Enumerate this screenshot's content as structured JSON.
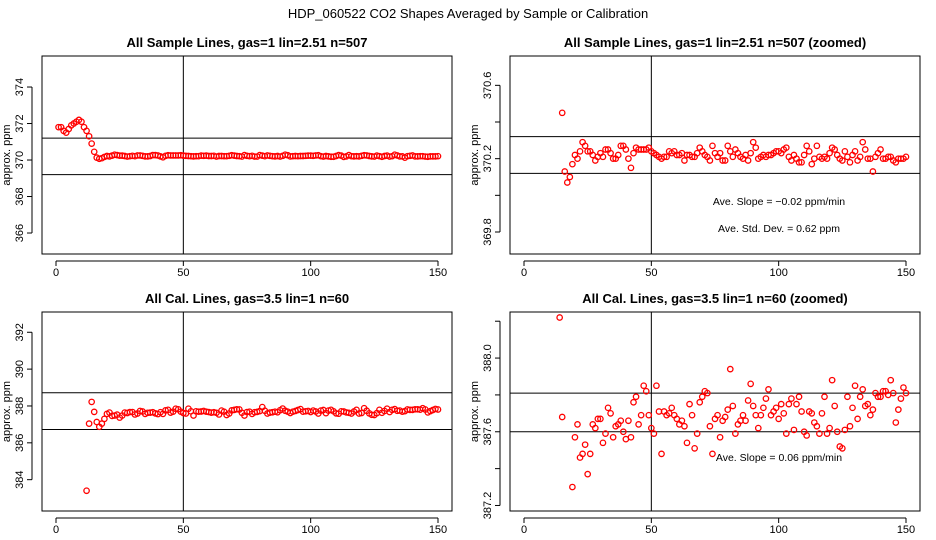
{
  "figure": {
    "title": "HDP_060522  CO2 Shapes Averaged by Sample or Calibration"
  },
  "colors": {
    "points": "#ff0000",
    "lines": "#000000"
  },
  "chart_data": [
    {
      "type": "scatter",
      "title": "All Sample Lines, gas=1 lin=2.51 n=507",
      "ylabel": "approx. ppm",
      "xlabel": "",
      "xlim": [
        -5.5,
        155.5
      ],
      "ylim": [
        364.85,
        375.7
      ],
      "xticks": [
        0,
        50,
        100,
        150
      ],
      "yticks": [
        366,
        368,
        370,
        372,
        374
      ],
      "vline": 50,
      "hlines": [
        371.2,
        369.2
      ],
      "annotations": [],
      "series_ref": "sample"
    },
    {
      "type": "scatter",
      "title": "All Sample Lines, gas=1 lin=2.51 n=507 (zoomed)",
      "ylabel": "approx. ppm",
      "xlabel": "",
      "xlim": [
        -5.5,
        155.5
      ],
      "ylim": [
        369.68,
        370.76
      ],
      "xticks": [
        0,
        50,
        100,
        150
      ],
      "yticks": [
        369.8,
        370.0,
        370.2,
        370.4,
        370.6
      ],
      "ytick_labels": [
        "369.8",
        "",
        "370.2",
        "",
        "370.6"
      ],
      "vline": 50,
      "hlines": [
        370.32,
        370.12
      ],
      "annotations": [
        "Ave. Slope =  −0.02  ppm/min",
        "Ave. Std. Dev. =  0.62  ppm"
      ],
      "series_ref": "sample"
    },
    {
      "type": "scatter",
      "title": "All Cal. Lines, gas=3.5 lin=1 n=60",
      "ylabel": "approx. ppm",
      "xlabel": "",
      "xlim": [
        -5.5,
        155.5
      ],
      "ylim": [
        382.3,
        393.1
      ],
      "xticks": [
        0,
        50,
        100,
        150
      ],
      "yticks": [
        384,
        386,
        388,
        390,
        392
      ],
      "vline": 50,
      "hlines": [
        388.72,
        386.72
      ],
      "annotations": [],
      "series_ref": "cal"
    },
    {
      "type": "scatter",
      "title": "All Cal. Lines, gas=3.5 lin=1 n=60 (zoomed)",
      "ylabel": "approx. ppm",
      "xlabel": "",
      "xlim": [
        -5.5,
        155.5
      ],
      "ylim": [
        387.17,
        388.25
      ],
      "xticks": [
        0,
        50,
        100,
        150
      ],
      "yticks": [
        387.2,
        387.4,
        387.6,
        387.8,
        388.0,
        388.2
      ],
      "ytick_labels": [
        "387.2",
        "",
        "387.6",
        "",
        "388.0",
        ""
      ],
      "vline": 50,
      "hlines": [
        387.81,
        387.6
      ],
      "annotations": [
        "Ave. Slope =  0.06  ppm/min"
      ],
      "series_ref": "cal"
    }
  ],
  "series": {
    "sample": {
      "x_start": 1,
      "values": [
        371.8,
        371.8,
        371.6,
        371.5,
        371.7,
        371.9,
        372.0,
        372.1,
        372.2,
        372.1,
        371.8,
        371.6,
        371.3,
        370.9,
        370.45,
        370.13,
        370.07,
        370.1,
        370.17,
        370.22,
        370.2,
        370.24,
        370.29,
        370.27,
        370.24,
        370.24,
        370.22,
        370.19,
        370.21,
        370.23,
        370.21,
        370.25,
        370.25,
        370.23,
        370.2,
        370.2,
        370.22,
        370.27,
        370.27,
        370.25,
        370.2,
        370.15,
        370.23,
        370.26,
        370.25,
        370.25,
        370.25,
        370.25,
        370.26,
        370.24,
        370.23,
        370.22,
        370.21,
        370.2,
        370.21,
        370.21,
        370.24,
        370.23,
        370.24,
        370.22,
        370.22,
        370.23,
        370.19,
        370.22,
        370.22,
        370.21,
        370.21,
        370.23,
        370.26,
        370.24,
        370.22,
        370.21,
        370.19,
        370.27,
        370.23,
        370.21,
        370.23,
        370.19,
        370.19,
        370.27,
        370.24,
        370.21,
        370.25,
        370.23,
        370.21,
        370.2,
        370.22,
        370.19,
        370.23,
        370.29,
        370.26,
        370.2,
        370.21,
        370.22,
        370.21,
        370.22,
        370.22,
        370.23,
        370.24,
        370.24,
        370.23,
        370.25,
        370.26,
        370.21,
        370.19,
        370.22,
        370.2,
        370.18,
        370.18,
        370.22,
        370.27,
        370.24,
        370.17,
        370.2,
        370.27,
        370.21,
        370.2,
        370.21,
        370.2,
        370.23,
        370.26,
        370.25,
        370.22,
        370.2,
        370.19,
        370.24,
        370.21,
        370.18,
        370.22,
        370.24,
        370.19,
        370.21,
        370.29,
        370.25,
        370.2,
        370.2,
        370.13,
        370.21,
        370.23,
        370.25,
        370.2,
        370.2,
        370.21,
        370.21,
        370.19,
        370.18,
        370.2,
        370.2,
        370.2,
        370.21
      ]
    },
    "cal": {
      "x_start": 12,
      "values": [
        383.4,
        387.04,
        388.22,
        387.68,
        387.13,
        386.87,
        387.04,
        387.3,
        387.57,
        387.64,
        387.46,
        387.48,
        387.53,
        387.37,
        387.48,
        387.64,
        387.62,
        387.67,
        387.67,
        387.54,
        387.59,
        387.73,
        387.7,
        387.57,
        387.63,
        387.64,
        387.66,
        387.6,
        387.56,
        387.66,
        387.57,
        387.76,
        387.79,
        387.64,
        387.69,
        387.85,
        387.82,
        387.69,
        387.62,
        387.59,
        387.85,
        387.71,
        387.48,
        387.71,
        387.69,
        387.7,
        387.73,
        387.69,
        387.67,
        387.64,
        387.66,
        387.63,
        387.54,
        387.75,
        387.69,
        387.51,
        387.59,
        387.76,
        387.79,
        387.82,
        387.81,
        387.63,
        387.48,
        387.67,
        387.69,
        387.57,
        387.66,
        387.68,
        387.72,
        387.94,
        387.74,
        387.59,
        387.64,
        387.66,
        387.69,
        387.66,
        387.77,
        387.86,
        387.74,
        387.69,
        387.62,
        387.69,
        387.73,
        387.78,
        387.83,
        387.69,
        387.71,
        387.73,
        387.67,
        387.75,
        387.7,
        387.59,
        387.75,
        387.78,
        387.61,
        387.75,
        387.79,
        387.71,
        387.6,
        387.58,
        387.71,
        387.7,
        387.65,
        387.63,
        387.59,
        387.7,
        387.79,
        387.59,
        387.62,
        387.88,
        387.74,
        387.6,
        387.52,
        387.51,
        387.61,
        387.79,
        387.63,
        387.73,
        387.85,
        387.67,
        387.79,
        387.83,
        387.74,
        387.75,
        387.69,
        387.72,
        387.81,
        387.79,
        387.79,
        387.82,
        387.82,
        387.8,
        387.88,
        387.81,
        387.65,
        387.72,
        387.78,
        387.84,
        387.81
      ]
    }
  }
}
